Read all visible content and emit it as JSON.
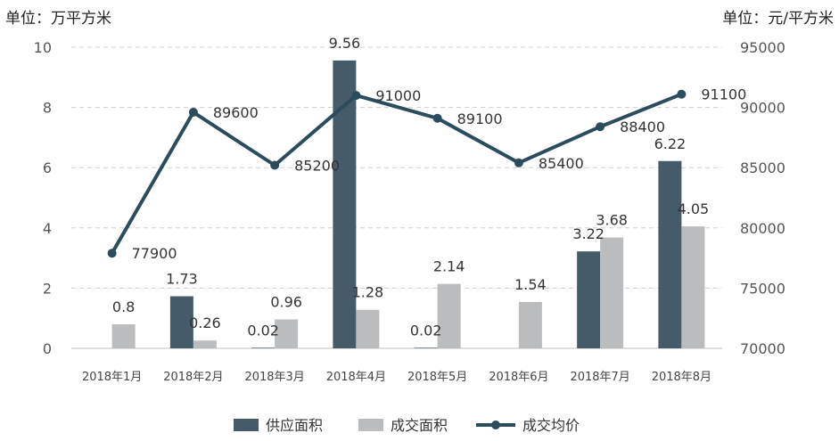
{
  "chart_data": {
    "type": "bar",
    "left_unit": "单位：万平方米",
    "right_unit": "单位：元/平方米",
    "categories": [
      "2018年1月",
      "2018年2月",
      "2018年3月",
      "2018年4月",
      "2018年5月",
      "2018年6月",
      "2018年7月",
      "2018年8月"
    ],
    "left_axis": {
      "min": 0,
      "max": 10,
      "ticks": [
        0,
        2,
        4,
        6,
        8,
        10
      ]
    },
    "right_axis": {
      "min": 70000,
      "max": 95000,
      "ticks": [
        70000,
        75000,
        80000,
        85000,
        90000,
        95000
      ]
    },
    "grid": true,
    "legend_position": "bottom",
    "series": [
      {
        "name": "供应面积",
        "kind": "bar",
        "axis": "left",
        "color": "#465b6a",
        "values": [
          null,
          1.73,
          0.02,
          9.56,
          0.02,
          null,
          3.22,
          6.22
        ],
        "labels": [
          "",
          "1.73",
          "0.02",
          "9.56",
          "0.02",
          "",
          "3.22",
          "6.22"
        ]
      },
      {
        "name": "成交面积",
        "kind": "bar",
        "axis": "left",
        "color": "#bbbcbe",
        "values": [
          0.8,
          0.26,
          0.96,
          1.28,
          2.14,
          1.54,
          3.68,
          4.05
        ],
        "labels": [
          "0.8",
          "0.26",
          "0.96",
          "1.28",
          "2.14",
          "1.54",
          "3.68",
          "4.05"
        ]
      },
      {
        "name": "成交均价",
        "kind": "line",
        "axis": "right",
        "color": "#2a4c5c",
        "values": [
          77900,
          89600,
          85200,
          91000,
          89100,
          85400,
          88400,
          91100
        ],
        "labels": [
          "77900",
          "89600",
          "85200",
          "91000",
          "89100",
          "85400",
          "88400",
          "91100"
        ]
      }
    ]
  }
}
